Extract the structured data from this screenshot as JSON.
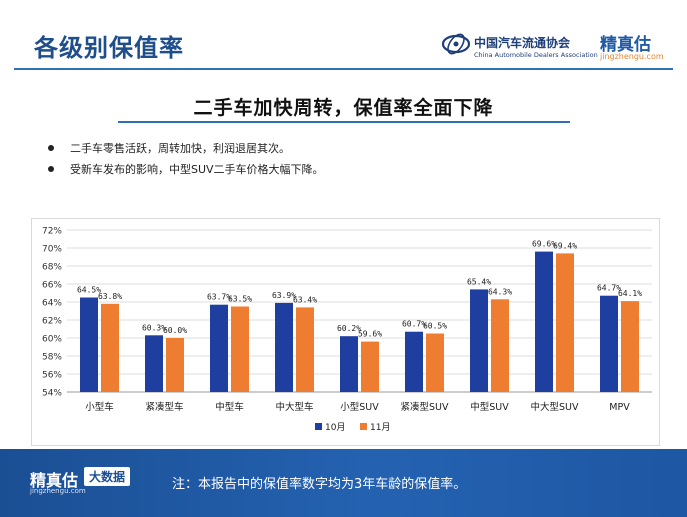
{
  "header": {
    "title": "各级别保值率",
    "association_name": "中国汽车流通协会",
    "association_name_en": "China Automobile Dealers Association",
    "brand_name": "精真估",
    "brand_url": "jingzhengu.com"
  },
  "subtitle": "二手车加快周转，保值率全面下降",
  "bullets": [
    "二手车零售活跃，周转加快，利润退居其次。",
    "受新车发布的影响，中型SUV二手车价格大幅下降。"
  ],
  "chart_data": {
    "type": "bar",
    "title": "",
    "xlabel": "",
    "ylabel": "",
    "ylim": [
      54,
      72
    ],
    "y_tick_step": 2,
    "y_ticks": [
      "54%",
      "56%",
      "58%",
      "60%",
      "62%",
      "64%",
      "66%",
      "68%",
      "70%",
      "72%"
    ],
    "grid": true,
    "legend_position": "bottom-center",
    "categories": [
      "小型车",
      "紧凑型车",
      "中型车",
      "中大型车",
      "小型SUV",
      "紧凑型SUV",
      "中型SUV",
      "中大型SUV",
      "MPV"
    ],
    "series": [
      {
        "name": "10月",
        "color": "#1f3fa0",
        "values": [
          64.5,
          60.3,
          63.7,
          63.9,
          60.2,
          60.7,
          65.4,
          69.6,
          64.7
        ],
        "labels": [
          "64.5%",
          "60.3%",
          "63.7%",
          "63.9%",
          "60.2%",
          "60.7%",
          "65.4%",
          "69.6%",
          "64.7%"
        ]
      },
      {
        "name": "11月",
        "color": "#ef7d31",
        "values": [
          63.8,
          60.0,
          63.5,
          63.4,
          59.6,
          60.5,
          64.3,
          69.4,
          64.1
        ],
        "labels": [
          "63.8%",
          "60.0%",
          "63.5%",
          "63.4%",
          "59.6%",
          "60.5%",
          "64.3%",
          "69.4%",
          "64.1%"
        ]
      }
    ]
  },
  "footer": {
    "brand_name": "精真估",
    "brand_url": "jingzhengu.com",
    "tag": "大数据",
    "note": "注：本报告中的保值率数字均为3年车龄的保值率。"
  },
  "colors": {
    "title_blue": "#1f4e8c",
    "accent_line": "#2f6fb7",
    "footer_bg": "#1b4f94",
    "brand_orange": "#e8842f"
  }
}
